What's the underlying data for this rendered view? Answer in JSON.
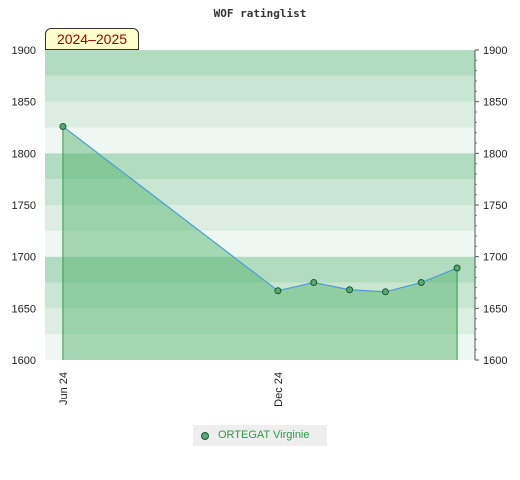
{
  "chart_data": {
    "type": "area",
    "title": "WOF ratinglist",
    "season_label": "2024–2025",
    "ylim": [
      1600,
      1900
    ],
    "y_ticks": [
      1600,
      1650,
      1700,
      1750,
      1800,
      1850,
      1900
    ],
    "x_tick_labels": [
      {
        "label": "Jun 24",
        "x": 0
      },
      {
        "label": "Dec 24",
        "x": 6
      }
    ],
    "xlim": [
      -0.5,
      11.5
    ],
    "series": [
      {
        "name": "ORTEGAT Virginie",
        "points": [
          {
            "x": 0,
            "y": 1826
          },
          {
            "x": 6,
            "y": 1667
          },
          {
            "x": 7,
            "y": 1675
          },
          {
            "x": 8,
            "y": 1668
          },
          {
            "x": 9,
            "y": 1666
          },
          {
            "x": 10,
            "y": 1675
          },
          {
            "x": 11,
            "y": 1689
          }
        ]
      }
    ],
    "grid": true,
    "colors": {
      "area_fill": "#4caf66",
      "line": "#4d9fd6",
      "marker_fill": "#55aa77",
      "marker_stroke": "#1a5a2a",
      "band_dark": "#b2dcc0",
      "band_mid": "#c8e6d2",
      "band_light": "#dceee2",
      "band_pale": "#eef7f1"
    },
    "legend": "bottom-center"
  }
}
